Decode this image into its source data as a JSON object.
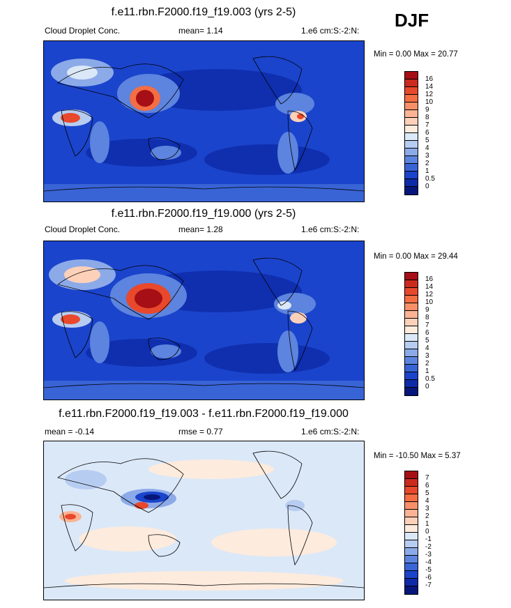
{
  "season": "DJF",
  "panels": [
    {
      "title": "f.e11.rbn.F2000.f19_f19.003 (yrs 2-5)",
      "left_label": "Cloud Droplet Conc.",
      "center_label": "mean=   1.14",
      "units": "1.e6 cm:S:-2:N:",
      "minmax": "Min =   0.00 Max =  20.77",
      "bg": "#1a3fbf",
      "levels": [
        "16",
        "14",
        "12",
        "10",
        "9",
        "8",
        "7",
        "6",
        "5",
        "4",
        "3",
        "2",
        "1",
        "0.5",
        "0"
      ],
      "colors": [
        "#a50f15",
        "#cb2a1e",
        "#e8482c",
        "#f46d43",
        "#f79068",
        "#fab394",
        "#fdd1b9",
        "#fdebdd",
        "#dbe8f8",
        "#b7ccf1",
        "#8caae8",
        "#5d84de",
        "#3964d6",
        "#1b44cc",
        "#0d2ba8",
        "#06167a"
      ]
    },
    {
      "title": "f.e11.rbn.F2000.f19_f19.000 (yrs 2-5)",
      "left_label": "Cloud Droplet Conc.",
      "center_label": "mean=   1.28",
      "units": "1.e6 cm:S:-2:N:",
      "minmax": "Min =   0.00 Max =  29.44",
      "bg": "#1a3fbf",
      "levels": [
        "16",
        "14",
        "12",
        "10",
        "9",
        "8",
        "7",
        "6",
        "5",
        "4",
        "3",
        "2",
        "1",
        "0.5",
        "0"
      ],
      "colors": [
        "#a50f15",
        "#cb2a1e",
        "#e8482c",
        "#f46d43",
        "#f79068",
        "#fab394",
        "#fdd1b9",
        "#fdebdd",
        "#dbe8f8",
        "#b7ccf1",
        "#8caae8",
        "#5d84de",
        "#3964d6",
        "#1b44cc",
        "#0d2ba8",
        "#06167a"
      ]
    },
    {
      "title": "f.e11.rbn.F2000.f19_f19.003 - f.e11.rbn.F2000.f19_f19.000",
      "left_label": "mean =  -0.14",
      "center_label": "rmse =   0.77",
      "units": "1.e6 cm:S:-2:N:",
      "minmax": "Min = -10.50 Max =   5.37",
      "bg": "#dbe8f8",
      "levels": [
        "7",
        "6",
        "5",
        "4",
        "3",
        "2",
        "1",
        "0",
        "-1",
        "-2",
        "-3",
        "-4",
        "-5",
        "-6",
        "-7"
      ],
      "colors": [
        "#a50f15",
        "#cb2a1e",
        "#e8482c",
        "#f46d43",
        "#f79068",
        "#fab394",
        "#fdd1b9",
        "#fdebdd",
        "#dbe8f8",
        "#b7ccf1",
        "#8caae8",
        "#5d84de",
        "#3964d6",
        "#1b44cc",
        "#0d2ba8",
        "#06167a"
      ]
    }
  ]
}
